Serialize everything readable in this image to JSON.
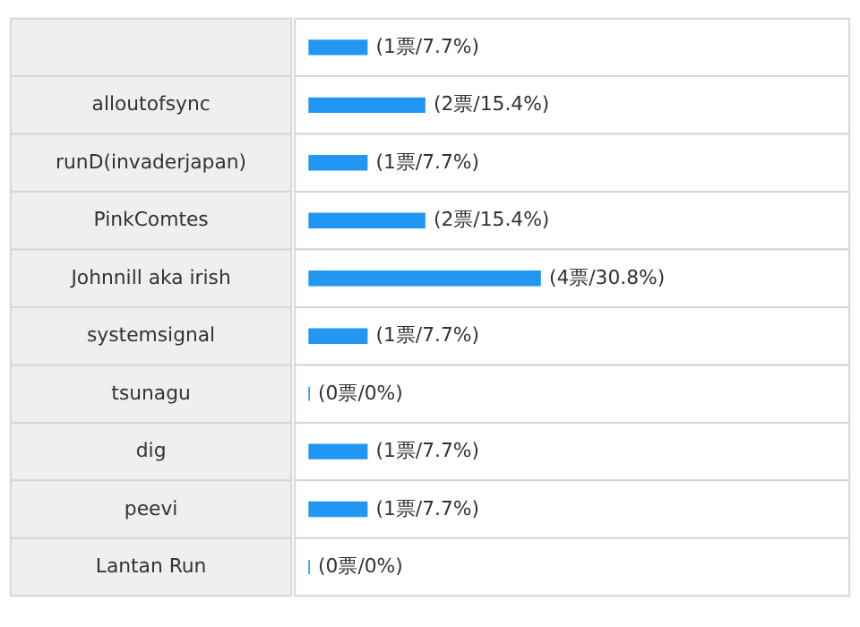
{
  "chart_data": {
    "type": "bar",
    "orientation": "horizontal",
    "categories": [
      null,
      "alloutofsync",
      "runD(invaderjapan)",
      "PinkComtes",
      "Johnnill aka irish",
      "systemsignal",
      "tsunagu",
      "dig",
      "peevi",
      "Lantan Run"
    ],
    "values": [
      1,
      2,
      1,
      2,
      4,
      1,
      0,
      1,
      1,
      0
    ],
    "value_labels": [
      "(1票/7.7%)",
      "(2票/15.4%)",
      "(1票/7.7%)",
      "(2票/15.4%)",
      "(4票/30.8%)",
      "(1票/7.7%)",
      "(0票/0%)",
      "(1票/7.7%)",
      "(1票/7.7%)",
      "(0票/0%)"
    ],
    "color": "#2196f3"
  }
}
